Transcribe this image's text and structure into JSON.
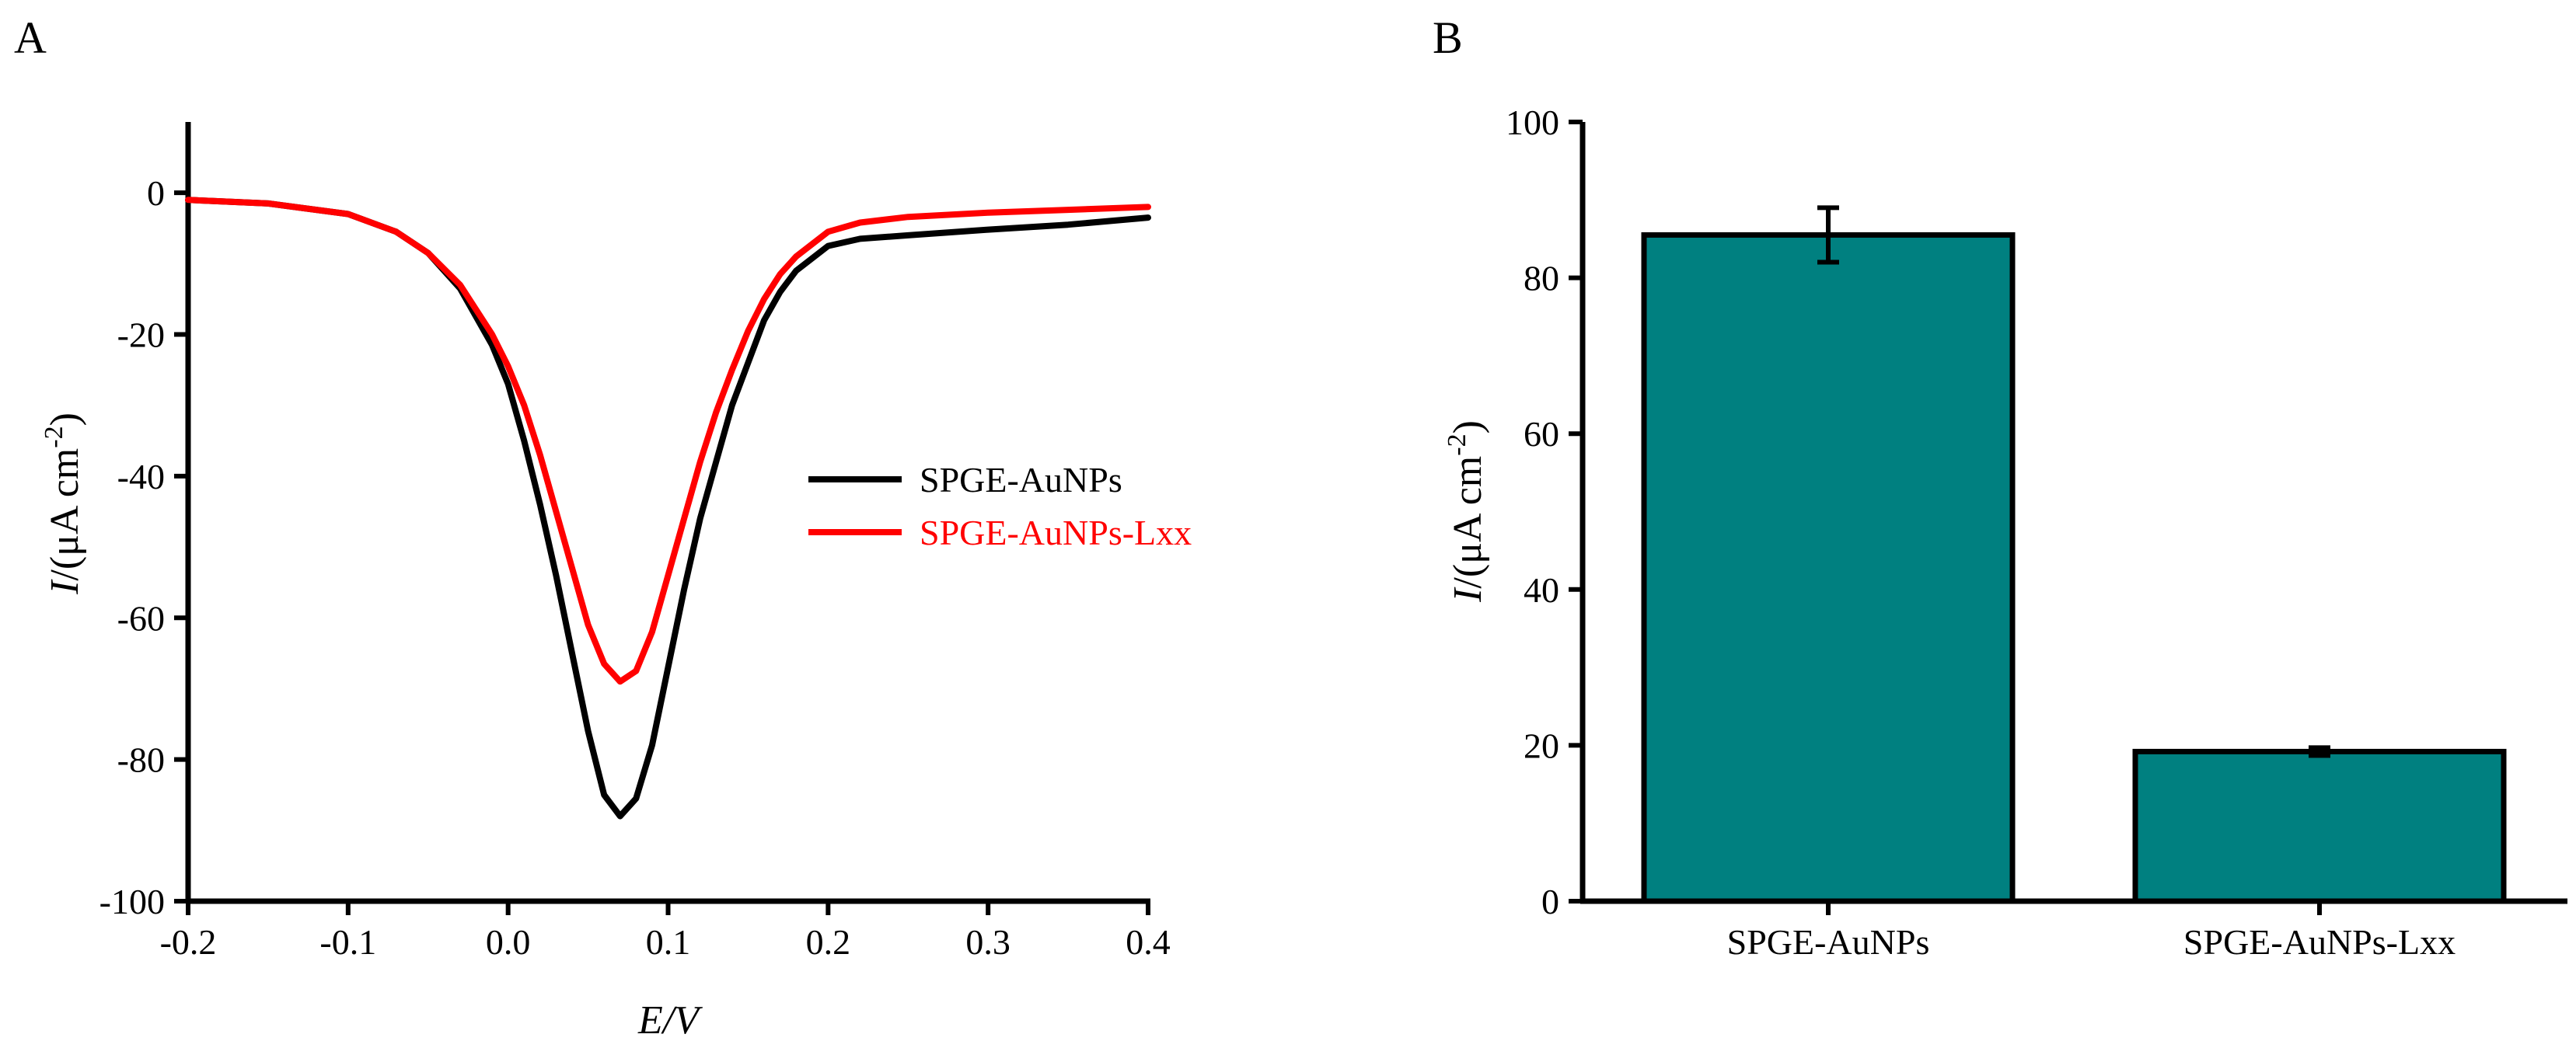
{
  "colors": {
    "series_black": "#000000",
    "series_red": "#ff0000",
    "bar_fill": "#008080",
    "axis": "#000000"
  },
  "chart_data": [
    {
      "panel": "A",
      "type": "line",
      "xlabel": "E/V",
      "ylabel_prefix": "I",
      "ylabel_rest": "/(μA cm",
      "ylabel_sup": "-2",
      "ylabel_close": ")",
      "xlim": [
        -0.2,
        0.4
      ],
      "ylim": [
        -100,
        10
      ],
      "xticks": [
        -0.2,
        -0.1,
        0.0,
        0.1,
        0.2,
        0.3,
        0.4
      ],
      "xtick_labels": [
        "-0.2",
        "-0.1",
        "0.0",
        "0.1",
        "0.2",
        "0.3",
        "0.4"
      ],
      "yticks": [
        0,
        -20,
        -40,
        -60,
        -80,
        -100
      ],
      "ytick_labels": [
        "0",
        "-20",
        "-40",
        "-60",
        "-80",
        "-100"
      ],
      "grid": false,
      "legend_position": "right-middle",
      "series": [
        {
          "name": "SPGE-AuNPs",
          "color": "#000000",
          "x": [
            -0.2,
            -0.15,
            -0.1,
            -0.07,
            -0.05,
            -0.03,
            -0.01,
            0.0,
            0.01,
            0.02,
            0.03,
            0.04,
            0.05,
            0.06,
            0.07,
            0.08,
            0.09,
            0.1,
            0.11,
            0.12,
            0.13,
            0.14,
            0.15,
            0.16,
            0.17,
            0.18,
            0.2,
            0.22,
            0.25,
            0.3,
            0.35,
            0.4
          ],
          "y": [
            -1.0,
            -1.5,
            -3.0,
            -5.5,
            -8.5,
            -13.5,
            -21.5,
            -27,
            -35,
            -44,
            -54,
            -65,
            -76,
            -85,
            -88,
            -85.5,
            -78,
            -67,
            -56,
            -46,
            -38,
            -30,
            -24,
            -18,
            -14,
            -11,
            -7.5,
            -6.5,
            -6,
            -5.2,
            -4.5,
            -3.5
          ]
        },
        {
          "name": "SPGE-AuNPs-Lxx",
          "color": "#ff0000",
          "x": [
            -0.2,
            -0.15,
            -0.1,
            -0.07,
            -0.05,
            -0.03,
            -0.01,
            0.0,
            0.01,
            0.02,
            0.03,
            0.04,
            0.05,
            0.06,
            0.07,
            0.08,
            0.09,
            0.1,
            0.11,
            0.12,
            0.13,
            0.14,
            0.15,
            0.16,
            0.17,
            0.18,
            0.2,
            0.22,
            0.25,
            0.3,
            0.35,
            0.4
          ],
          "y": [
            -1.0,
            -1.5,
            -3.0,
            -5.5,
            -8.5,
            -13,
            -20,
            -24.5,
            -30,
            -37,
            -45,
            -53,
            -61,
            -66.5,
            -69,
            -67.5,
            -62,
            -54,
            -46,
            -38,
            -31,
            -25,
            -19.5,
            -15,
            -11.5,
            -9,
            -5.5,
            -4.2,
            -3.4,
            -2.8,
            -2.4,
            -2.0
          ]
        }
      ]
    },
    {
      "panel": "B",
      "type": "bar",
      "xlabel": "",
      "ylabel_prefix": "I",
      "ylabel_rest": "/(μA cm",
      "ylabel_sup": "-2",
      "ylabel_close": ")",
      "categories": [
        "SPGE-AuNPs",
        "SPGE-AuNPs-Lxx"
      ],
      "values": [
        85.5,
        19.2
      ],
      "errors": [
        3.5,
        0.5
      ],
      "ylim": [
        0,
        100
      ],
      "yticks": [
        0,
        20,
        40,
        60,
        80,
        100
      ],
      "ytick_labels": [
        "0",
        "20",
        "40",
        "60",
        "80",
        "100"
      ],
      "grid": false
    }
  ]
}
